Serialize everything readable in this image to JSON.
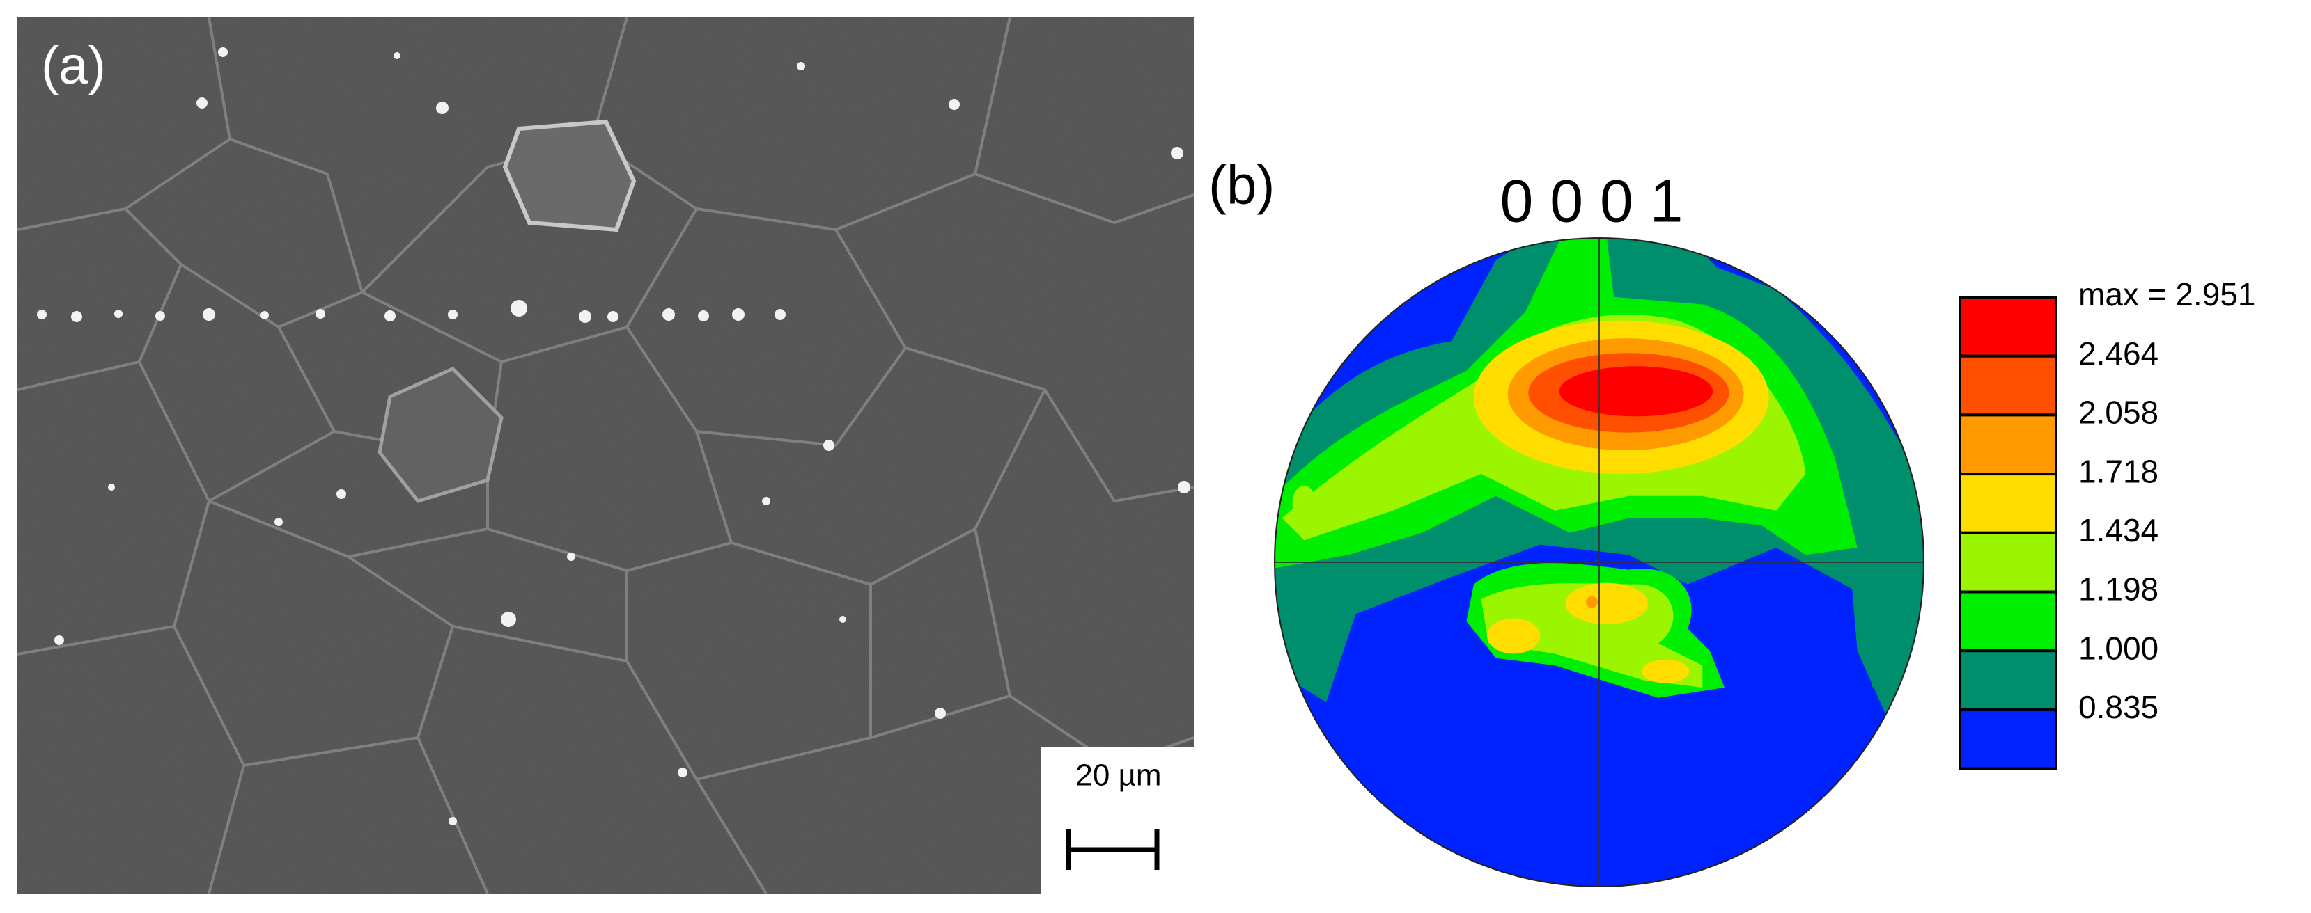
{
  "panel_a": {
    "label": "(a)",
    "scale_bar": "20 µm"
  },
  "panel_b": {
    "label": "(b)",
    "pole": "0 0 0 1",
    "legend": [
      {
        "label": "max = 2.951",
        "color": "#ff0000"
      },
      {
        "label": "2.464",
        "color": "#ff4f00"
      },
      {
        "label": "2.058",
        "color": "#ff9a00"
      },
      {
        "label": "1.718",
        "color": "#ffdd00"
      },
      {
        "label": "1.434",
        "color": "#9cf500"
      },
      {
        "label": "1.198",
        "color": "#00ee00"
      },
      {
        "label": "1.000",
        "color": "#008f6c"
      },
      {
        "label": "0.835",
        "color": "#0022ff"
      }
    ]
  }
}
